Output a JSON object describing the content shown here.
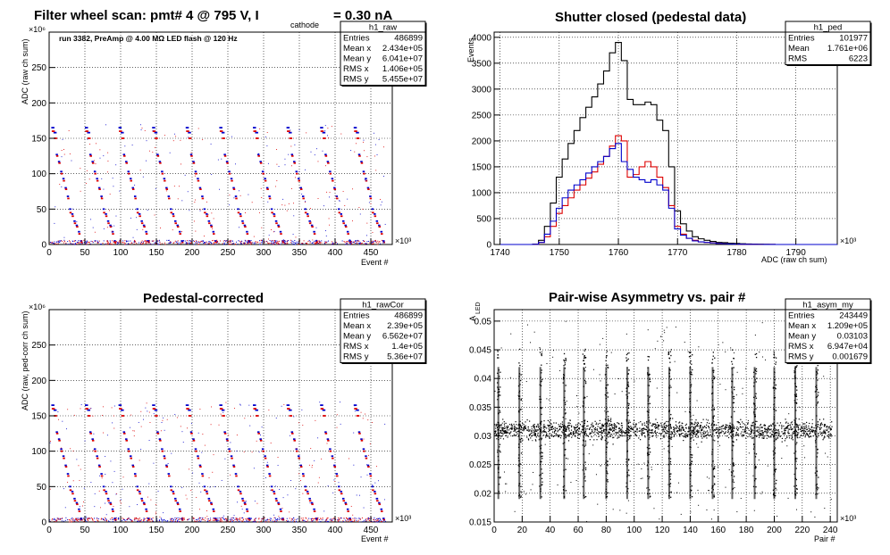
{
  "charts": {
    "raw": {
      "title": "Filter wheel scan: pmt#   4 @   795 V, I",
      "title_sub": "cathode",
      "title_tail": "= 0.30 nA",
      "annotation": "run 3382, PreAmp @ 4.00 MΩ   LED flash @  120 Hz",
      "xlabel": "Event #",
      "ylabel": "ADC (raw ch sum)",
      "xexp": "×10³",
      "yexp": "×10⁶",
      "xticks": [
        "0",
        "50",
        "100",
        "150",
        "200",
        "250",
        "300",
        "350",
        "400",
        "450"
      ],
      "yticks": [
        "0",
        "50",
        "100",
        "150",
        "200",
        "250"
      ],
      "stats": {
        "name": "h1_raw",
        "rows": [
          {
            "k": "Entries",
            "v": "486899"
          },
          {
            "k": "Mean x",
            "v": "2.434e+05"
          },
          {
            "k": "Mean y",
            "v": "6.041e+07"
          },
          {
            "k": "RMS x",
            "v": "1.406e+05"
          },
          {
            "k": "RMS y",
            "v": "5.455e+07"
          }
        ]
      }
    },
    "ped": {
      "title": "Shutter closed (pedestal data)",
      "xlabel": "ADC (raw ch sum)",
      "ylabel": "Events",
      "xexp": "×10³",
      "xticks": [
        "1740",
        "1750",
        "1760",
        "1770",
        "1780",
        "1790"
      ],
      "yticks": [
        "0",
        "500",
        "1000",
        "1500",
        "2000",
        "2500",
        "3000",
        "3500",
        "4000"
      ],
      "stats": {
        "name": "h1_ped",
        "rows": [
          {
            "k": "Entries",
            "v": "101977"
          },
          {
            "k": "Mean",
            "v": "1.761e+06"
          },
          {
            "k": "RMS",
            "v": "6223"
          }
        ]
      }
    },
    "cor": {
      "title": "Pedestal-corrected",
      "xlabel": "Event #",
      "ylabel": "ADC (raw, ped-corr ch sum)",
      "xexp": "×10³",
      "yexp": "×10⁶",
      "xticks": [
        "0",
        "50",
        "100",
        "150",
        "200",
        "250",
        "300",
        "350",
        "400",
        "450"
      ],
      "yticks": [
        "0",
        "50",
        "100",
        "150",
        "200",
        "250"
      ],
      "stats": {
        "name": "h1_rawCor",
        "rows": [
          {
            "k": "Entries",
            "v": "486899"
          },
          {
            "k": "Mean x",
            "v": "2.39e+05"
          },
          {
            "k": "Mean y",
            "v": "6.562e+07"
          },
          {
            "k": "RMS x",
            "v": "1.4e+05"
          },
          {
            "k": "RMS y",
            "v": "5.36e+07"
          }
        ]
      }
    },
    "asym": {
      "title": "Pair-wise Asymmetry vs. pair #",
      "xlabel": "Pair #",
      "ylabel": "A",
      "ylabel_sub": "LED",
      "xexp": "×10³",
      "xticks": [
        "0",
        "20",
        "40",
        "60",
        "80",
        "100",
        "120",
        "140",
        "160",
        "180",
        "200",
        "220",
        "240"
      ],
      "yticks": [
        "0.015",
        "0.02",
        "0.025",
        "0.03",
        "0.035",
        "0.04",
        "0.045",
        "0.05"
      ],
      "stats": {
        "name": "h1_asym_my",
        "rows": [
          {
            "k": "Entries",
            "v": "243449"
          },
          {
            "k": "Mean x",
            "v": "1.209e+05"
          },
          {
            "k": "Mean y",
            "v": "0.03103"
          },
          {
            "k": "RMS x",
            "v": "6.947e+04"
          },
          {
            "k": "RMS y",
            "v": "0.001679"
          }
        ]
      }
    }
  },
  "chart_data": [
    {
      "type": "scatter",
      "title": "Filter wheel scan: pmt#   4 @   795 V, I cathode = 0.30 nA",
      "xlabel": "Event #",
      "ylabel": "ADC (raw ch sum)",
      "x_unit_scale": "x10^3",
      "y_unit_scale": "x10^6",
      "xlim": [
        0,
        480
      ],
      "ylim": [
        0,
        300
      ],
      "grid": true,
      "series": [
        {
          "color": "#0000cc",
          "cycle_period": 47,
          "levels": [
            165,
            158,
            127,
            117,
            103,
            93,
            80,
            68,
            50,
            43,
            33,
            27,
            18,
            5
          ],
          "values": [
            165,
            158,
            127,
            117,
            103,
            93,
            80,
            68,
            50,
            43,
            33,
            27,
            18,
            5
          ]
        },
        {
          "color": "#dd0000",
          "cycle_period": 47,
          "levels": [
            160,
            150,
            125,
            115,
            100,
            90,
            78,
            65,
            45,
            40,
            30,
            25,
            15,
            3
          ],
          "values": [
            160,
            150,
            125,
            115,
            100,
            90,
            78,
            65,
            45,
            40,
            30,
            25,
            15,
            3
          ]
        }
      ]
    },
    {
      "type": "line",
      "title": "Shutter closed (pedestal data)",
      "xlabel": "ADC (raw ch sum)",
      "ylabel": "Events",
      "x_unit_scale": "x10^3",
      "xlim": [
        1739,
        1797
      ],
      "ylim": [
        0,
        4100
      ],
      "grid": true,
      "x": [
        1746,
        1747,
        1748,
        1749,
        1750,
        1751,
        1752,
        1753,
        1754,
        1755,
        1756,
        1757,
        1758,
        1759,
        1760,
        1761,
        1762,
        1763,
        1764,
        1765,
        1766,
        1767,
        1768,
        1769,
        1770,
        1771,
        1772,
        1773,
        1774,
        1775,
        1776,
        1777,
        1778,
        1779,
        1780,
        1781,
        1782,
        1783,
        1784,
        1785,
        1786
      ],
      "series": [
        {
          "name": "total",
          "color": "#000000",
          "values": [
            5,
            80,
            350,
            800,
            1300,
            1650,
            1950,
            2200,
            2450,
            2650,
            2850,
            3100,
            3350,
            3700,
            3900,
            3550,
            2800,
            2700,
            2700,
            2750,
            2700,
            2400,
            2200,
            1500,
            650,
            400,
            260,
            150,
            110,
            80,
            60,
            40,
            35,
            25,
            20,
            15,
            10,
            8,
            5,
            3,
            2
          ]
        },
        {
          "name": "red",
          "color": "#dd0000",
          "values": [
            2,
            40,
            150,
            350,
            600,
            750,
            900,
            1050,
            1150,
            1280,
            1400,
            1550,
            1700,
            1900,
            2100,
            2000,
            1300,
            1350,
            1500,
            1600,
            1500,
            1300,
            1100,
            750,
            350,
            200,
            120,
            80,
            50,
            40,
            30,
            20,
            15,
            10,
            8,
            6,
            4,
            3,
            2,
            1,
            1
          ]
        },
        {
          "name": "blue",
          "color": "#0000cc",
          "values": [
            3,
            40,
            200,
            450,
            700,
            900,
            1050,
            1150,
            1250,
            1380,
            1500,
            1600,
            1700,
            1850,
            1950,
            1600,
            1450,
            1300,
            1250,
            1200,
            1250,
            1150,
            1050,
            700,
            300,
            180,
            120,
            70,
            50,
            40,
            30,
            20,
            15,
            10,
            8,
            6,
            4,
            3,
            2,
            1,
            1
          ]
        }
      ]
    },
    {
      "type": "scatter",
      "title": "Pedestal-corrected",
      "xlabel": "Event #",
      "ylabel": "ADC (raw, ped-corr ch sum)",
      "x_unit_scale": "x10^3",
      "y_unit_scale": "x10^6",
      "xlim": [
        0,
        480
      ],
      "ylim": [
        0,
        300
      ],
      "grid": true,
      "series": [
        {
          "color": "#0000cc",
          "cycle_period": 47,
          "levels": [
            165,
            158,
            127,
            117,
            103,
            93,
            80,
            68,
            50,
            43,
            33,
            27,
            18,
            5
          ],
          "values": [
            165,
            158,
            127,
            117,
            103,
            93,
            80,
            68,
            50,
            43,
            33,
            27,
            18,
            5
          ]
        },
        {
          "color": "#dd0000",
          "cycle_period": 47,
          "levels": [
            160,
            150,
            125,
            115,
            100,
            90,
            78,
            65,
            45,
            40,
            30,
            25,
            15,
            3
          ],
          "values": [
            160,
            150,
            125,
            115,
            100,
            90,
            78,
            65,
            45,
            40,
            30,
            25,
            15,
            3
          ]
        }
      ]
    },
    {
      "type": "scatter",
      "title": "Pair-wise Asymmetry vs. pair #",
      "xlabel": "Pair #",
      "ylabel": "A LED",
      "x_unit_scale": "x10^3",
      "xlim": [
        0,
        245
      ],
      "ylim": [
        0.015,
        0.052
      ],
      "grid": true,
      "series": [
        {
          "color": "#000000",
          "band_center": 0.031,
          "band_halfwidth": 0.0012,
          "spike_x": [
            3,
            18,
            33,
            50,
            64,
            80,
            95,
            110,
            125,
            140,
            156,
            170,
            186,
            200,
            215,
            230
          ],
          "values": [
            0.031
          ]
        }
      ]
    }
  ]
}
